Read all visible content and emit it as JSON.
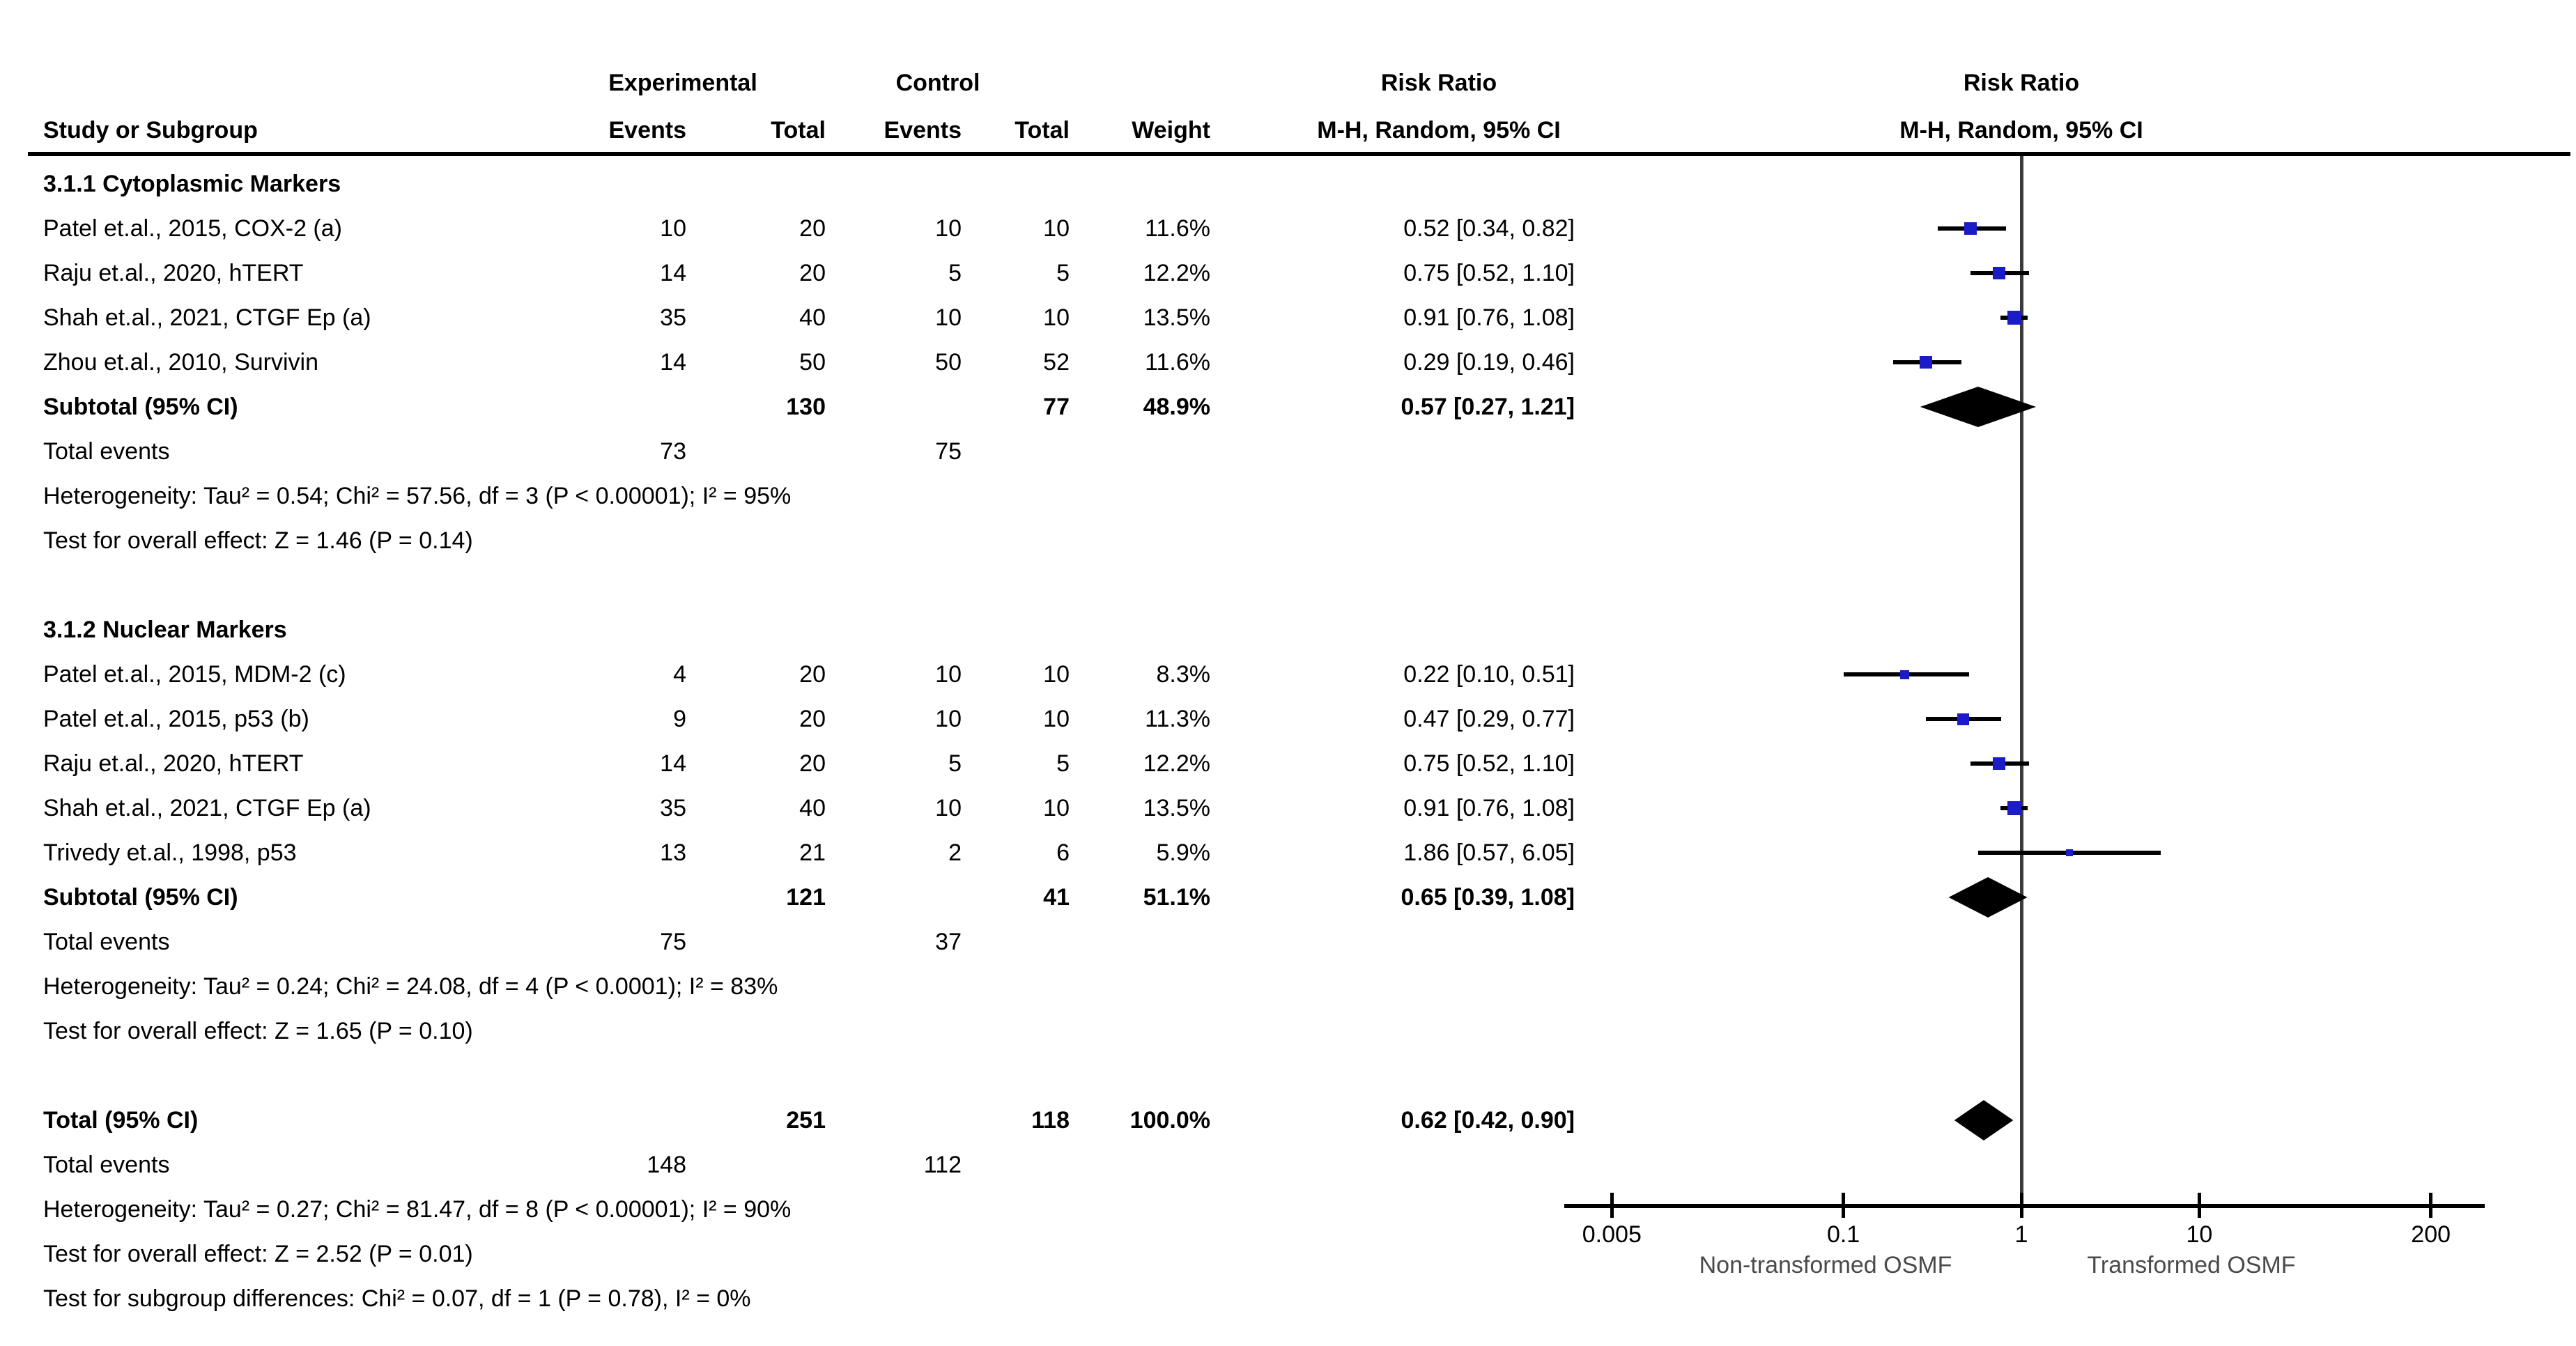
{
  "header": {
    "col_group_experimental": "Experimental",
    "col_group_control": "Control",
    "rr_left_line1": "Risk Ratio",
    "rr_left_line2": "M-H, Random, 95% CI",
    "rr_right_line1": "Risk Ratio",
    "rr_right_line2": "M-H, Random, 95% CI",
    "col_study": "Study or Subgroup",
    "col_events1": "Events",
    "col_total1": "Total",
    "col_events2": "Events",
    "col_total2": "Total",
    "col_weight": "Weight"
  },
  "axis": {
    "scale": "log",
    "ticks": [
      "0.005",
      "0.1",
      "1",
      "10",
      "200"
    ],
    "tick_values": [
      0.005,
      0.1,
      1,
      10,
      200
    ],
    "label_left": "Non-transformed OSMF",
    "label_right": "Transformed OSMF"
  },
  "colors": {
    "marker_blue": "#1B1BC8",
    "diamond_black": "#000000",
    "ci_line": "#000000",
    "ref_line": "#3a3a3a"
  },
  "rows": [
    {
      "type": "section",
      "label": "3.1.1 Cytoplasmic Markers"
    },
    {
      "type": "study",
      "label": "Patel et.al., 2015, COX-2 (a)",
      "e1": "10",
      "t1": "20",
      "e2": "10",
      "t2": "10",
      "weight": "11.6%",
      "rr_text": "0.52 [0.34, 0.82]",
      "rr": 0.52,
      "lo": 0.34,
      "hi": 0.82,
      "w": 11.6
    },
    {
      "type": "study",
      "label": "Raju et.al., 2020, hTERT",
      "e1": "14",
      "t1": "20",
      "e2": "5",
      "t2": "5",
      "weight": "12.2%",
      "rr_text": "0.75 [0.52, 1.10]",
      "rr": 0.75,
      "lo": 0.52,
      "hi": 1.1,
      "w": 12.2
    },
    {
      "type": "study",
      "label": "Shah et.al., 2021, CTGF Ep (a)",
      "e1": "35",
      "t1": "40",
      "e2": "10",
      "t2": "10",
      "weight": "13.5%",
      "rr_text": "0.91 [0.76, 1.08]",
      "rr": 0.91,
      "lo": 0.76,
      "hi": 1.08,
      "w": 13.5
    },
    {
      "type": "study",
      "label": "Zhou et.al., 2010, Survivin",
      "e1": "14",
      "t1": "50",
      "e2": "50",
      "t2": "52",
      "weight": "11.6%",
      "rr_text": "0.29 [0.19, 0.46]",
      "rr": 0.29,
      "lo": 0.19,
      "hi": 0.46,
      "w": 11.6
    },
    {
      "type": "subtotal",
      "label": "Subtotal (95% CI)",
      "t1": "130",
      "t2": "77",
      "weight": "48.9%",
      "rr_text": "0.57 [0.27, 1.21]",
      "rr": 0.57,
      "lo": 0.27,
      "hi": 1.21
    },
    {
      "type": "totalevents",
      "label": "Total events",
      "e1": "73",
      "e2": "75"
    },
    {
      "type": "note",
      "label": "Heterogeneity: Tau² = 0.54; Chi² = 57.56, df = 3 (P < 0.00001); I² = 95%"
    },
    {
      "type": "note",
      "label": "Test for overall effect: Z = 1.46 (P = 0.14)"
    },
    {
      "type": "blank",
      "label": ""
    },
    {
      "type": "section",
      "label": "3.1.2 Nuclear Markers"
    },
    {
      "type": "study",
      "label": "Patel et.al., 2015, MDM-2 (c)",
      "e1": "4",
      "t1": "20",
      "e2": "10",
      "t2": "10",
      "weight": "8.3%",
      "rr_text": "0.22 [0.10, 0.51]",
      "rr": 0.22,
      "lo": 0.1,
      "hi": 0.51,
      "w": 8.3
    },
    {
      "type": "study",
      "label": "Patel et.al., 2015, p53 (b)",
      "e1": "9",
      "t1": "20",
      "e2": "10",
      "t2": "10",
      "weight": "11.3%",
      "rr_text": "0.47 [0.29, 0.77]",
      "rr": 0.47,
      "lo": 0.29,
      "hi": 0.77,
      "w": 11.3
    },
    {
      "type": "study",
      "label": "Raju et.al., 2020, hTERT",
      "e1": "14",
      "t1": "20",
      "e2": "5",
      "t2": "5",
      "weight": "12.2%",
      "rr_text": "0.75 [0.52, 1.10]",
      "rr": 0.75,
      "lo": 0.52,
      "hi": 1.1,
      "w": 12.2
    },
    {
      "type": "study",
      "label": "Shah et.al., 2021, CTGF Ep (a)",
      "e1": "35",
      "t1": "40",
      "e2": "10",
      "t2": "10",
      "weight": "13.5%",
      "rr_text": "0.91 [0.76, 1.08]",
      "rr": 0.91,
      "lo": 0.76,
      "hi": 1.08,
      "w": 13.5
    },
    {
      "type": "study",
      "label": "Trivedy et.al., 1998, p53",
      "e1": "13",
      "t1": "21",
      "e2": "2",
      "t2": "6",
      "weight": "5.9%",
      "rr_text": "1.86 [0.57, 6.05]",
      "rr": 1.86,
      "lo": 0.57,
      "hi": 6.05,
      "w": 5.9
    },
    {
      "type": "subtotal",
      "label": "Subtotal (95% CI)",
      "t1": "121",
      "t2": "41",
      "weight": "51.1%",
      "rr_text": "0.65 [0.39, 1.08]",
      "rr": 0.65,
      "lo": 0.39,
      "hi": 1.08
    },
    {
      "type": "totalevents",
      "label": "Total events",
      "e1": "75",
      "e2": "37"
    },
    {
      "type": "note",
      "label": "Heterogeneity: Tau² = 0.24; Chi² = 24.08, df = 4 (P < 0.0001); I² = 83%"
    },
    {
      "type": "note",
      "label": "Test for overall effect: Z = 1.65 (P = 0.10)"
    },
    {
      "type": "blank",
      "label": ""
    },
    {
      "type": "total",
      "label": "Total (95% CI)",
      "t1": "251",
      "t2": "118",
      "weight": "100.0%",
      "rr_text": "0.62 [0.42, 0.90]",
      "rr": 0.62,
      "lo": 0.42,
      "hi": 0.9
    },
    {
      "type": "totalevents",
      "label": "Total events",
      "e1": "148",
      "e2": "112"
    },
    {
      "type": "note",
      "label": "Heterogeneity: Tau² = 0.27; Chi² = 81.47, df = 8 (P < 0.00001); I² = 90%"
    },
    {
      "type": "note",
      "label": "Test for overall effect: Z = 2.52 (P = 0.01)"
    },
    {
      "type": "note",
      "label": "Test for subgroup differences: Chi² = 0.07, df = 1 (P = 0.78), I² = 0%"
    }
  ],
  "chart_data": {
    "type": "forest",
    "measure": "Risk Ratio (M-H, Random, 95% CI)",
    "x_axis": {
      "scale": "log",
      "ticks": [
        0.005,
        0.1,
        1,
        10,
        200
      ],
      "label_left": "Non-transformed OSMF",
      "label_right": "Transformed OSMF"
    },
    "subgroups": [
      {
        "name": "3.1.1 Cytoplasmic Markers",
        "studies": [
          {
            "study": "Patel et.al., 2015, COX-2 (a)",
            "exp_events": 10,
            "exp_total": 20,
            "ctl_events": 10,
            "ctl_total": 10,
            "weight_pct": 11.6,
            "rr": 0.52,
            "ci": [
              0.34,
              0.82
            ]
          },
          {
            "study": "Raju et.al., 2020, hTERT",
            "exp_events": 14,
            "exp_total": 20,
            "ctl_events": 5,
            "ctl_total": 5,
            "weight_pct": 12.2,
            "rr": 0.75,
            "ci": [
              0.52,
              1.1
            ]
          },
          {
            "study": "Shah et.al., 2021, CTGF Ep (a)",
            "exp_events": 35,
            "exp_total": 40,
            "ctl_events": 10,
            "ctl_total": 10,
            "weight_pct": 13.5,
            "rr": 0.91,
            "ci": [
              0.76,
              1.08
            ]
          },
          {
            "study": "Zhou et.al., 2010, Survivin",
            "exp_events": 14,
            "exp_total": 50,
            "ctl_events": 50,
            "ctl_total": 52,
            "weight_pct": 11.6,
            "rr": 0.29,
            "ci": [
              0.19,
              0.46
            ]
          }
        ],
        "subtotal": {
          "exp_total": 130,
          "ctl_total": 77,
          "weight_pct": 48.9,
          "rr": 0.57,
          "ci": [
            0.27,
            1.21
          ],
          "total_events_exp": 73,
          "total_events_ctl": 75,
          "heterogeneity": "Tau² = 0.54; Chi² = 57.56, df = 3 (P < 0.00001); I² = 95%",
          "overall_effect": "Z = 1.46 (P = 0.14)"
        }
      },
      {
        "name": "3.1.2 Nuclear Markers",
        "studies": [
          {
            "study": "Patel et.al., 2015, MDM-2 (c)",
            "exp_events": 4,
            "exp_total": 20,
            "ctl_events": 10,
            "ctl_total": 10,
            "weight_pct": 8.3,
            "rr": 0.22,
            "ci": [
              0.1,
              0.51
            ]
          },
          {
            "study": "Patel et.al., 2015, p53 (b)",
            "exp_events": 9,
            "exp_total": 20,
            "ctl_events": 10,
            "ctl_total": 10,
            "weight_pct": 11.3,
            "rr": 0.47,
            "ci": [
              0.29,
              0.77
            ]
          },
          {
            "study": "Raju et.al., 2020, hTERT",
            "exp_events": 14,
            "exp_total": 20,
            "ctl_events": 5,
            "ctl_total": 5,
            "weight_pct": 12.2,
            "rr": 0.75,
            "ci": [
              0.52,
              1.1
            ]
          },
          {
            "study": "Shah et.al., 2021, CTGF Ep (a)",
            "exp_events": 35,
            "exp_total": 40,
            "ctl_events": 10,
            "ctl_total": 10,
            "weight_pct": 13.5,
            "rr": 0.91,
            "ci": [
              0.76,
              1.08
            ]
          },
          {
            "study": "Trivedy et.al., 1998, p53",
            "exp_events": 13,
            "exp_total": 21,
            "ctl_events": 2,
            "ctl_total": 6,
            "weight_pct": 5.9,
            "rr": 1.86,
            "ci": [
              0.57,
              6.05
            ]
          }
        ],
        "subtotal": {
          "exp_total": 121,
          "ctl_total": 41,
          "weight_pct": 51.1,
          "rr": 0.65,
          "ci": [
            0.39,
            1.08
          ],
          "total_events_exp": 75,
          "total_events_ctl": 37,
          "heterogeneity": "Tau² = 0.24; Chi² = 24.08, df = 4 (P < 0.0001); I² = 83%",
          "overall_effect": "Z = 1.65 (P = 0.10)"
        }
      }
    ],
    "total": {
      "exp_total": 251,
      "ctl_total": 118,
      "weight_pct": 100.0,
      "rr": 0.62,
      "ci": [
        0.42,
        0.9
      ],
      "total_events_exp": 148,
      "total_events_ctl": 112,
      "heterogeneity": "Tau² = 0.27; Chi² = 81.47, df = 8 (P < 0.00001); I² = 90%",
      "overall_effect": "Z = 2.52 (P = 0.01)",
      "subgroup_differences": "Chi² = 0.07, df = 1 (P = 0.78), I² = 0%"
    }
  }
}
